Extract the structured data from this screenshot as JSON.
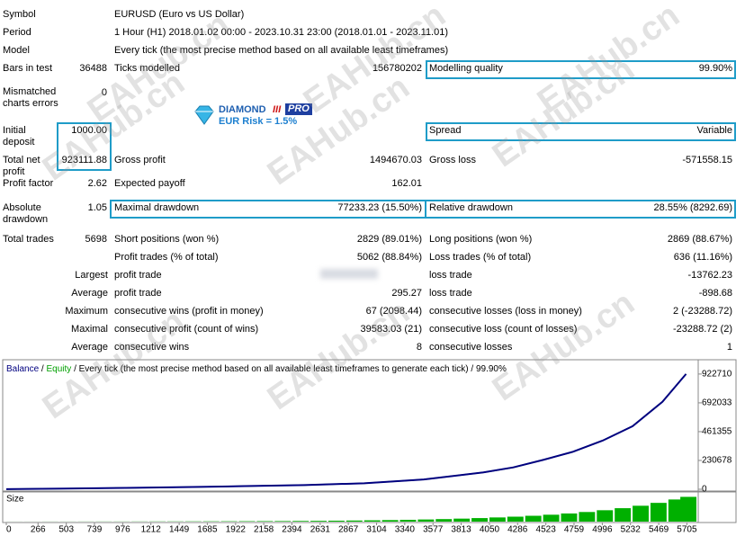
{
  "report": {
    "symbol": {
      "label": "Symbol",
      "value": "EURUSD (Euro vs US Dollar)"
    },
    "period": {
      "label": "Period",
      "value": "1 Hour (H1) 2018.01.02 00:00 - 2023.10.31 23:00 (2018.01.01 - 2023.11.01)"
    },
    "model": {
      "label": "Model",
      "value": "Every tick (the most precise method based on all available least timeframes)"
    },
    "bars_in_test": {
      "label": "Bars in test",
      "value": 36488
    },
    "ticks_modelled": {
      "label": "Ticks modelled",
      "value": 156780202
    },
    "modelling_quality": {
      "label": "Modelling quality",
      "value": "99.90%"
    },
    "mismatched": {
      "label": "Mismatched charts errors",
      "value": 0
    },
    "initial_deposit": {
      "label": "Initial deposit",
      "value": "1000.00"
    },
    "spread": {
      "label": "Spread",
      "value": "Variable"
    },
    "total_net_profit": {
      "label": "Total net profit",
      "value": "923111.88"
    },
    "gross_profit": {
      "label": "Gross profit",
      "value": "1494670.03"
    },
    "gross_loss": {
      "label": "Gross loss",
      "value": "-571558.15"
    },
    "profit_factor": {
      "label": "Profit factor",
      "value": "2.62"
    },
    "expected_payoff": {
      "label": "Expected payoff",
      "value": "162.01"
    },
    "absolute_drawdown": {
      "label": "Absolute drawdown",
      "value": "1.05"
    },
    "maximal_drawdown": {
      "label": "Maximal drawdown",
      "value": "77233.23 (15.50%)"
    },
    "relative_drawdown": {
      "label": "Relative drawdown",
      "value": "28.55% (8292.69)"
    },
    "total_trades": {
      "label": "Total trades",
      "value": 5698
    },
    "short_positions": {
      "label": "Short positions (won %)",
      "value": "2829 (89.01%)"
    },
    "long_positions": {
      "label": "Long positions (won %)",
      "value": "2869 (88.67%)"
    },
    "profit_trades": {
      "label": "Profit trades (% of total)",
      "value": "5062 (88.84%)"
    },
    "loss_trades": {
      "label": "Loss trades (% of total)",
      "value": "636 (11.16%)"
    },
    "largest": {
      "prefix": "Largest",
      "profit_label": "profit trade",
      "loss_label": "loss trade",
      "loss_value": "-13762.23"
    },
    "average": {
      "prefix": "Average",
      "profit_label": "profit trade",
      "profit_value": "295.27",
      "loss_label": "loss trade",
      "loss_value": "-898.68"
    },
    "maximum": {
      "prefix": "Maximum",
      "profit_label": "consecutive wins (profit in money)",
      "profit_value": "67 (2098.44)",
      "loss_label": "consecutive losses (loss in money)",
      "loss_value": "2 (-23288.72)"
    },
    "maximal": {
      "prefix": "Maximal",
      "profit_label": "consecutive profit (count of wins)",
      "profit_value": "39583.03 (21)",
      "loss_label": "consecutive loss (count of losses)",
      "loss_value": "-23288.72 (2)"
    },
    "average_consecutive": {
      "prefix": "Average",
      "profit_label": "consecutive wins",
      "profit_value": 8,
      "loss_label": "consecutive losses",
      "loss_value": 1
    }
  },
  "logo": {
    "name": "DIAMOND",
    "mark": "III",
    "badge": "PRO",
    "risk": "EUR Risk = 1.5%"
  },
  "watermark": "EAHub.cn",
  "chart_data": [
    {
      "type": "line",
      "separator": "/",
      "subtitle": "Every tick (the most precise method based on all available least timeframes to generate each tick)",
      "quality": "99.90%",
      "x": [
        0,
        500,
        1000,
        1500,
        2000,
        2500,
        3000,
        3500,
        4000,
        4250,
        4500,
        4750,
        5000,
        5250,
        5500,
        5698
      ],
      "series": [
        {
          "name": "Equity",
          "color": "#00a000",
          "values": [
            1000,
            5000,
            11000,
            17000,
            25000,
            33000,
            48000,
            78000,
            135000,
            175000,
            235000,
            300000,
            390000,
            505000,
            700000,
            923112
          ]
        },
        {
          "name": "Balance",
          "color": "#000080",
          "values": [
            1000,
            5000,
            11000,
            17000,
            25000,
            33000,
            48000,
            78000,
            135000,
            175000,
            235000,
            300000,
            390000,
            505000,
            700000,
            923112
          ]
        }
      ],
      "xlim": [
        0,
        5800
      ],
      "ylim": [
        0,
        1030000
      ],
      "xticks": [
        0,
        266,
        503,
        739,
        976,
        1212,
        1449,
        1685,
        1922,
        2158,
        2394,
        2631,
        2867,
        3104,
        3340,
        3577,
        3813,
        4050,
        4286,
        4523,
        4759,
        4996,
        5232,
        5469,
        5705
      ],
      "yticks": [
        0,
        230678,
        461355,
        692033,
        922710
      ]
    },
    {
      "type": "bar",
      "title": "Size",
      "color": "#00b000",
      "x": [
        0,
        150,
        300,
        450,
        600,
        750,
        900,
        1050,
        1200,
        1350,
        1500,
        1650,
        1800,
        1950,
        2100,
        2250,
        2400,
        2550,
        2700,
        2850,
        3000,
        3150,
        3300,
        3450,
        3600,
        3750,
        3900,
        4050,
        4200,
        4350,
        4500,
        4650,
        4800,
        4950,
        5100,
        5250,
        5400,
        5550,
        5650
      ],
      "values": [
        0.02,
        0.02,
        0.03,
        0.03,
        0.04,
        0.05,
        0.05,
        0.06,
        0.08,
        0.09,
        0.11,
        0.13,
        0.15,
        0.18,
        0.21,
        0.24,
        0.29,
        0.34,
        0.4,
        0.47,
        0.56,
        0.66,
        0.78,
        0.92,
        1.09,
        1.29,
        1.52,
        1.8,
        2.13,
        2.51,
        2.97,
        3.51,
        4.14,
        4.9,
        5.78,
        6.83,
        8.07,
        9.53,
        10.66
      ],
      "xlim": [
        0,
        5800
      ],
      "ylim": [
        0,
        12
      ]
    }
  ]
}
